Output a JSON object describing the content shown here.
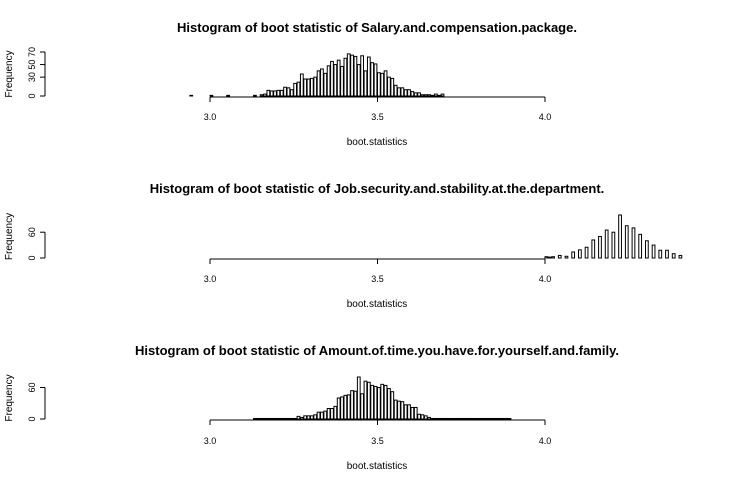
{
  "chart_data": [
    {
      "type": "bar",
      "title": "Histogram of boot statistic of  Salary.and.compensation.package.",
      "xlabel": "boot.statistics",
      "ylabel": "Frequency",
      "xlim": [
        3.0,
        4.0
      ],
      "xticks": [
        "3.0",
        "3.5",
        "4.0"
      ],
      "ylim": [
        0,
        70
      ],
      "yticks": [
        "0",
        "30",
        "50",
        "70"
      ],
      "bin_width": 0.01,
      "bins_start": [
        2.94,
        3.0,
        3.05,
        3.13,
        3.15,
        3.16,
        3.17,
        3.18,
        3.19,
        3.2,
        3.21,
        3.22,
        3.23,
        3.24,
        3.25,
        3.26,
        3.27,
        3.28,
        3.29,
        3.3,
        3.31,
        3.32,
        3.33,
        3.34,
        3.35,
        3.36,
        3.37,
        3.38,
        3.39,
        3.4,
        3.41,
        3.42,
        3.43,
        3.44,
        3.45,
        3.46,
        3.47,
        3.48,
        3.49,
        3.5,
        3.51,
        3.52,
        3.53,
        3.54,
        3.55,
        3.56,
        3.57,
        3.58,
        3.59,
        3.6,
        3.61,
        3.62,
        3.63,
        3.64,
        3.65,
        3.66,
        3.67,
        3.68,
        3.69,
        3.7,
        3.71,
        3.72,
        3.73,
        3.74,
        3.75,
        3.76,
        3.77,
        3.78,
        3.79,
        3.8,
        3.81,
        3.82,
        3.83,
        3.84,
        3.85,
        3.86,
        3.87,
        3.88,
        3.89
      ],
      "values": [
        1,
        1,
        1,
        1,
        2,
        3,
        9,
        8,
        8,
        9,
        9,
        14,
        13,
        10,
        20,
        22,
        35,
        27,
        27,
        28,
        30,
        40,
        43,
        36,
        48,
        55,
        50,
        57,
        47,
        60,
        67,
        65,
        63,
        50,
        64,
        40,
        62,
        53,
        51,
        37,
        36,
        40,
        30,
        28,
        17,
        13,
        13,
        10,
        10,
        7,
        5,
        5,
        2,
        2,
        2,
        1,
        3,
        1,
        3,
        0,
        0,
        0,
        0,
        0,
        0,
        0,
        0,
        0,
        0,
        0,
        0,
        0,
        0,
        0,
        0,
        0,
        0,
        0,
        0
      ]
    },
    {
      "type": "bar",
      "title": "Histogram of boot statistic of  Job.security.and.stability.at.the.department.",
      "xlabel": "boot.statistics",
      "ylabel": "Frequency",
      "xlim": [
        3.0,
        4.0
      ],
      "xticks": [
        "3.0",
        "3.5",
        "4.0"
      ],
      "ylim": [
        0,
        60
      ],
      "yticks": [
        "0",
        "60"
      ],
      "bin_width": 0.01,
      "bins_start": [
        4.0,
        4.01,
        4.02,
        4.04,
        4.06,
        4.08,
        4.1,
        4.12,
        4.14,
        4.16,
        4.18,
        4.2,
        4.22,
        4.24,
        4.26,
        4.28,
        4.3,
        4.32,
        4.34,
        4.36,
        4.38,
        4.4
      ],
      "values": [
        3,
        2,
        3,
        6,
        4,
        14,
        19,
        25,
        42,
        50,
        65,
        60,
        100,
        75,
        70,
        55,
        40,
        30,
        18,
        18,
        10,
        6
      ]
    },
    {
      "type": "bar",
      "title": "Histogram of boot statistic of  Amount.of.time.you.have.for.yourself.and.family.",
      "xlabel": "boot.statistics",
      "ylabel": "Frequency",
      "xlim": [
        3.0,
        4.0
      ],
      "xticks": [
        "3.0",
        "3.5",
        "4.0"
      ],
      "ylim": [
        0,
        60
      ],
      "yticks": [
        "0",
        "60"
      ],
      "bin_width": 0.01,
      "bins_start": [
        3.13,
        3.14,
        3.15,
        3.16,
        3.17,
        3.18,
        3.19,
        3.2,
        3.21,
        3.22,
        3.23,
        3.24,
        3.25,
        3.26,
        3.27,
        3.28,
        3.29,
        3.3,
        3.31,
        3.32,
        3.33,
        3.34,
        3.35,
        3.36,
        3.37,
        3.38,
        3.39,
        3.4,
        3.41,
        3.42,
        3.43,
        3.44,
        3.45,
        3.46,
        3.47,
        3.48,
        3.49,
        3.5,
        3.51,
        3.52,
        3.53,
        3.54,
        3.55,
        3.56,
        3.57,
        3.58,
        3.59,
        3.6,
        3.61,
        3.62,
        3.63,
        3.64,
        3.65,
        3.66,
        3.67,
        3.68,
        3.69,
        3.7,
        3.71,
        3.72,
        3.73,
        3.74,
        3.75,
        3.76,
        3.77,
        3.78,
        3.79,
        3.8,
        3.81,
        3.82,
        3.83,
        3.84,
        3.85,
        3.86,
        3.87,
        3.88,
        3.89
      ],
      "values": [
        1,
        1,
        1,
        1,
        1,
        1,
        1,
        1,
        1,
        1,
        1,
        1,
        1,
        5,
        3,
        6,
        6,
        6,
        8,
        13,
        13,
        15,
        20,
        20,
        24,
        40,
        42,
        45,
        46,
        54,
        53,
        80,
        48,
        72,
        70,
        64,
        62,
        60,
        66,
        64,
        58,
        52,
        36,
        34,
        33,
        27,
        27,
        22,
        22,
        9,
        8,
        6,
        3,
        1,
        1,
        1,
        1,
        1,
        1,
        1,
        1,
        1,
        1,
        1,
        1,
        1,
        1,
        1,
        1,
        1,
        1,
        1,
        1,
        1,
        1,
        1,
        1
      ]
    }
  ]
}
